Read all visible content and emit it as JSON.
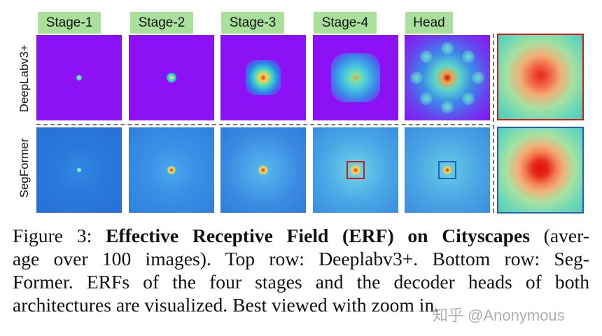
{
  "figure": {
    "stage_labels": [
      "Stage-1",
      "Stage-2",
      "Stage-3",
      "Stage-4",
      "Head"
    ],
    "row_labels": [
      "DeepLabv3+",
      "SegFormer"
    ],
    "colors": {
      "label_background": "#a9e19c",
      "deeplab_background": "#8c12f5",
      "segformer_background": "#2f7fe0",
      "top_zoom_border": "#d11a1a",
      "bottom_zoom_border": "#1d5fc4",
      "separator": "#777777"
    }
  },
  "caption": {
    "prefix": "Figure 3: ",
    "bold_title": "Effective Receptive Field (ERF) on Cityscapes",
    "line1_rest": " (aver-",
    "line2": "age over 100 images). Top row: Deeplabv3+. Bottom row: Seg-",
    "line3": "Former. ERFs of the four stages and the decoder heads of both",
    "line4": "architectures are visualized. Best viewed with zoom in."
  },
  "watermark": "知乎 @Anonymous"
}
